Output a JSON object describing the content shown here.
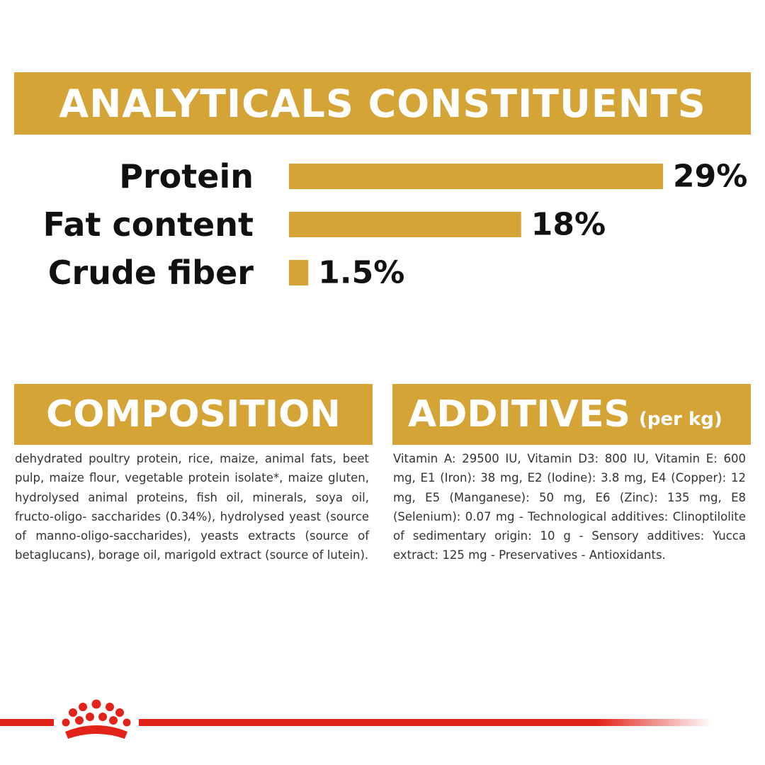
{
  "headings": {
    "analytical": "ANALYTICALS CONSTITUENTS",
    "composition": "COMPOSITION",
    "additives": "ADDITIVES",
    "additives_unit": "(per kg)"
  },
  "chart_data": {
    "type": "bar",
    "orientation": "horizontal",
    "categories": [
      "Protein",
      "Fat content",
      "Crude fiber"
    ],
    "values": [
      29,
      18,
      1.5
    ],
    "value_labels": [
      "29%",
      "18%",
      "1.5%"
    ],
    "unit": "%",
    "xlim": [
      0,
      29
    ],
    "grid": false,
    "bar_color": "#d4a437"
  },
  "composition": {
    "text": "dehydrated poultry protein, rice, maize, animal fats, beet pulp, maize flour, vegetable protein isolate*, maize gluten, hydrolysed animal proteins, fish oil, minerals, soya oil, fructo-oligo- saccharides (0.34%), hydrolysed yeast (source of manno-oligo-saccharides), yeasts extracts (source of betaglucans), borage oil, marigold extract (source of lutein)."
  },
  "additives": {
    "text": "Vitamin A: 29500 IU, Vitamin D3: 800 IU, Vitamin E: 600 mg, E1 (Iron): 38 mg, E2 (Iodine): 3.8 mg, E4 (Copper): 12 mg, E5 (Manganese): 50 mg, E6 (Zinc): 135 mg, E8 (Selenium): 0.07 mg - Technological additives: Clinoptilolite of sedimentary origin: 10 g - Sensory additives: Yucca extract: 125 mg - Preservatives - Antioxidants."
  },
  "brand": {
    "logo_icon": "crown-icon",
    "accent_color": "#e2231a"
  }
}
